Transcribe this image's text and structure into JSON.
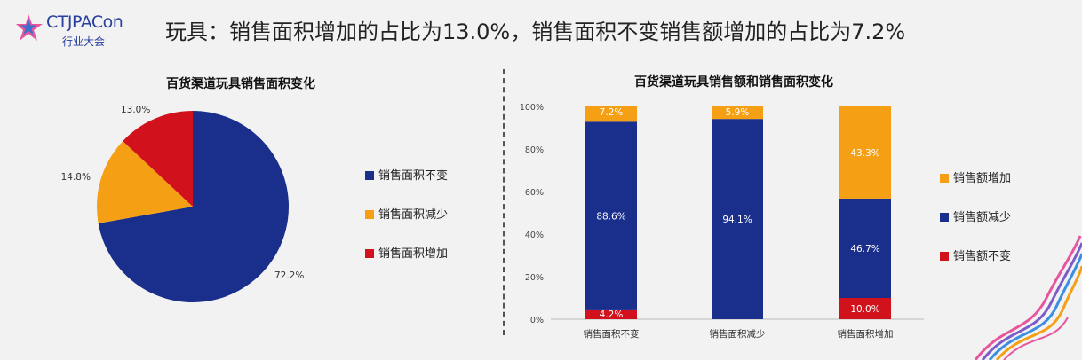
{
  "logo": {
    "name": "CTJPACon",
    "subtitle": "行业大会"
  },
  "headline": "玩具：销售面积增加的占比为13.0%，销售面积不变销售额增加的占比为7.2%",
  "colors": {
    "blue": "#1a2e8c",
    "orange": "#f5a014",
    "red": "#d1111b"
  },
  "chart_data": [
    {
      "type": "pie",
      "title": "百货渠道玩具销售面积变化",
      "slices": [
        {
          "label": "销售面积不变",
          "value": 72.2,
          "display": "72.2%",
          "color": "#1a2e8c"
        },
        {
          "label": "销售面积减少",
          "value": 14.8,
          "display": "14.8%",
          "color": "#f5a014"
        },
        {
          "label": "销售面积增加",
          "value": 13.0,
          "display": "13.0%",
          "color": "#d1111b"
        }
      ],
      "legend": [
        "销售面积不变",
        "销售面积减少",
        "销售面积增加"
      ],
      "legend_position": "right"
    },
    {
      "type": "bar",
      "stacked": true,
      "title": "百货渠道玩具销售额和销售面积变化",
      "categories": [
        "销售面积不变",
        "销售面积减少",
        "销售面积增加"
      ],
      "series": [
        {
          "name": "销售额不变",
          "color": "#d1111b",
          "values": [
            4.2,
            0.0,
            10.0
          ],
          "labels": [
            "4.2%",
            "0.0%",
            "10.0%"
          ]
        },
        {
          "name": "销售额减少",
          "color": "#1a2e8c",
          "values": [
            88.6,
            94.1,
            46.7
          ],
          "labels": [
            "88.6%",
            "94.1%",
            "46.7%"
          ]
        },
        {
          "name": "销售额增加",
          "color": "#f5a014",
          "values": [
            7.2,
            5.9,
            43.3
          ],
          "labels": [
            "7.2%",
            "5.9%",
            "43.3%"
          ]
        }
      ],
      "yticks": [
        "0%",
        "20%",
        "40%",
        "60%",
        "80%",
        "100%"
      ],
      "ylim": [
        0,
        100
      ],
      "legend": [
        "销售额增加",
        "销售额减少",
        "销售额不变"
      ],
      "legend_position": "right"
    }
  ]
}
